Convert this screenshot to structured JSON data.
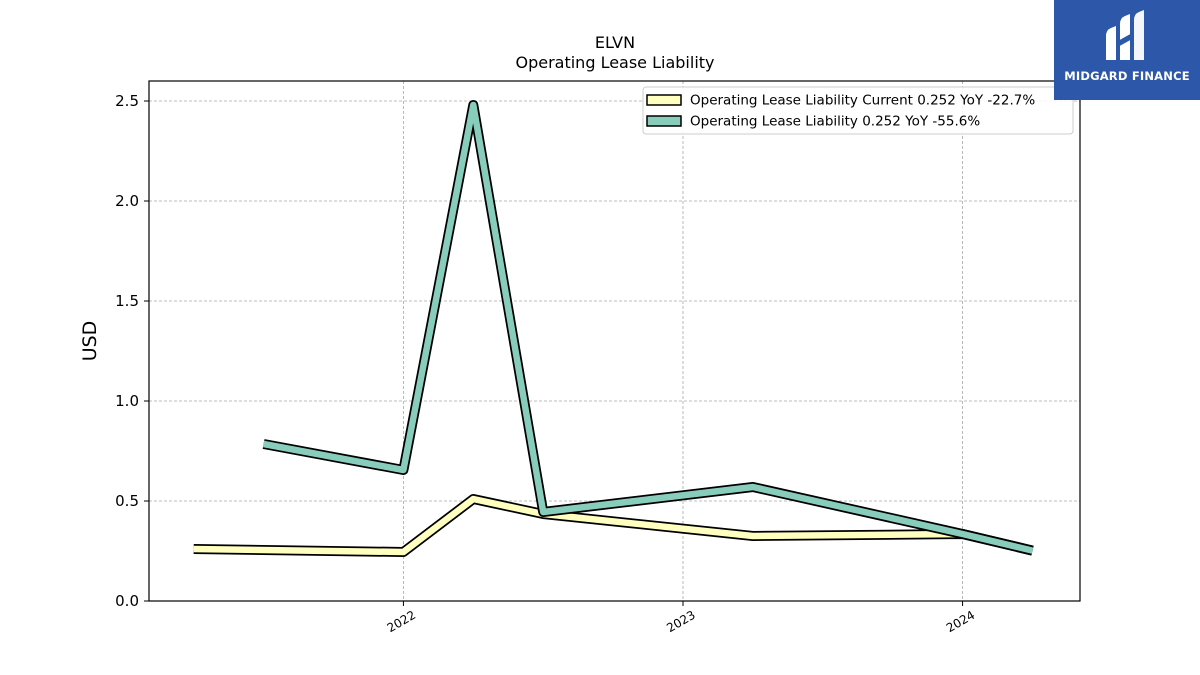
{
  "chart_data": {
    "type": "line",
    "title": "ELVN",
    "subtitle": "Operating Lease Liability",
    "ylabel": "USD",
    "xlabel": "",
    "ylim": [
      0,
      2.6
    ],
    "xlim": [
      2021.09,
      2024.42
    ],
    "yticks": [
      0.0,
      0.5,
      1.0,
      1.5,
      2.0,
      2.5
    ],
    "ytick_labels": [
      "0.0",
      "0.5",
      "1.0",
      "1.5",
      "2.0",
      "2.5"
    ],
    "xticks": [
      2022,
      2023,
      2024
    ],
    "xtick_labels": [
      "2022",
      "2023",
      "2024"
    ],
    "grid": true,
    "legend_position": "top-right",
    "series": [
      {
        "name": "Operating Lease Liability Current  0.252 YoY -22.7%",
        "color": "#ffffbf",
        "x": [
          2021.25,
          2022.0,
          2022.25,
          2022.5,
          2023.25,
          2024.0,
          2024.25
        ],
        "y": [
          0.26,
          0.245,
          0.51,
          0.435,
          0.325,
          0.335,
          0.252
        ]
      },
      {
        "name": "Operating Lease Liability  0.252 YoY -55.6%",
        "color": "#88ccbb",
        "x": [
          2021.5,
          2022.0,
          2022.25,
          2022.5,
          2023.25,
          2024.0,
          2024.25
        ],
        "y": [
          0.785,
          0.655,
          2.48,
          0.445,
          0.57,
          0.335,
          0.252
        ]
      }
    ]
  },
  "logo": {
    "text": "MIDGARD FINANCE",
    "icon": "midgard-logo-icon"
  }
}
